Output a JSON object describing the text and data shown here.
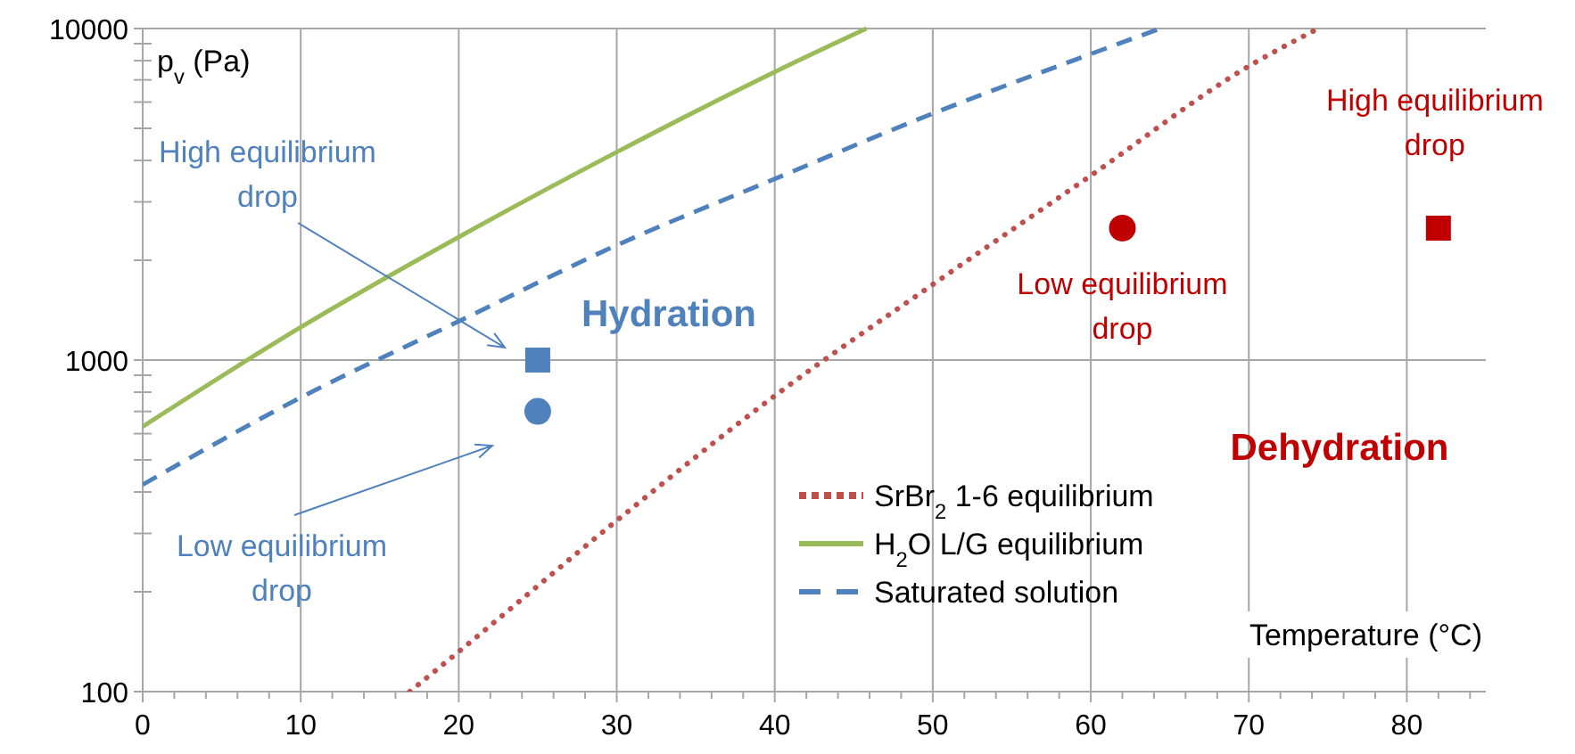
{
  "chart_data": {
    "type": "line",
    "log": "y",
    "xlabel": "Temperature (°C)",
    "ylabel": "p$_{v}$ (Pa)",
    "xlim": [
      0,
      85
    ],
    "xticks": [
      0,
      {
        "value": 2,
        "label": null
      },
      {
        "value": 4,
        "label": null
      },
      {
        "value": 6,
        "label": null
      },
      {
        "value": 8,
        "label": null
      },
      10,
      {
        "value": 12,
        "label": null
      },
      {
        "value": 14,
        "label": null
      },
      {
        "value": 16,
        "label": null
      },
      {
        "value": 18,
        "label": null
      },
      20,
      {
        "value": 22,
        "label": null
      },
      {
        "value": 24,
        "label": null
      },
      {
        "value": 26,
        "label": null
      },
      {
        "value": 28,
        "label": null
      },
      30,
      {
        "value": 32,
        "label": null
      },
      {
        "value": 34,
        "label": null
      },
      {
        "value": 36,
        "label": null
      },
      {
        "value": 38,
        "label": null
      },
      40,
      {
        "value": 42,
        "label": null
      },
      {
        "value": 44,
        "label": null
      },
      {
        "value": 46,
        "label": null
      },
      {
        "value": 48,
        "label": null
      },
      50,
      {
        "value": 52,
        "label": null
      },
      {
        "value": 54,
        "label": null
      },
      {
        "value": 56,
        "label": null
      },
      {
        "value": 58,
        "label": null
      },
      60,
      {
        "value": 62,
        "label": null
      },
      {
        "value": 64,
        "label": null
      },
      {
        "value": 66,
        "label": null
      },
      {
        "value": 68,
        "label": null
      },
      70,
      {
        "value": 72,
        "label": null
      },
      {
        "value": 74,
        "label": null
      },
      {
        "value": 76,
        "label": null
      },
      {
        "value": 78,
        "label": null
      },
      80,
      {
        "value": 82,
        "label": null
      },
      {
        "value": 84,
        "label": null
      }
    ],
    "ylim": [
      100,
      10000
    ],
    "yticks": [
      100,
      {
        "value": 200,
        "label": null
      },
      {
        "value": 300,
        "label": null
      },
      {
        "value": 400,
        "label": null
      },
      {
        "value": 500,
        "label": null
      },
      {
        "value": 600,
        "label": null
      },
      {
        "value": 700,
        "label": null
      },
      {
        "value": 800,
        "label": null
      },
      {
        "value": 900,
        "label": null
      },
      1000,
      {
        "value": 2000,
        "label": null
      },
      {
        "value": 3000,
        "label": null
      },
      {
        "value": 4000,
        "label": null
      },
      {
        "value": 5000,
        "label": null
      },
      {
        "value": 6000,
        "label": null
      },
      {
        "value": 7000,
        "label": null
      },
      {
        "value": 8000,
        "label": null
      },
      {
        "value": 9000,
        "label": null
      },
      10000
    ],
    "grid": true,
    "legend": "bottom right",
    "series": [
      {
        "name": "SrBr$_{2}$ 1-6 equilibrium",
        "color": "#c0504d",
        "line_style": "dotted",
        "x": [
          16.9,
          20,
          30,
          40,
          50,
          60,
          70,
          74.4
        ],
        "values": [
          100,
          132,
          328,
          780,
          1690,
          3600,
          7700,
          10000
        ]
      },
      {
        "name": "H$_{2}$O L/G equilibrium",
        "color": "#9bbb59",
        "line_style": "solid",
        "x": [
          0,
          10,
          20,
          30,
          40,
          45.8
        ],
        "values": [
          630,
          1256,
          2350,
          4240,
          7400,
          10000
        ]
      },
      {
        "name": "Saturated solution",
        "color": "#4f81bd",
        "line_style": "dashed",
        "x": [
          0,
          10,
          20,
          30,
          40,
          50,
          60,
          64.4
        ],
        "values": [
          421,
          771,
          1309,
          2220,
          3520,
          5540,
          8380,
          10000
        ]
      },
      {
        "type": "scatter",
        "color": "#4f81bd",
        "marker": "square",
        "x": [
          25
        ],
        "values": [
          1000
        ]
      },
      {
        "type": "scatter",
        "color": "#4f81bd",
        "marker": "circle",
        "x": [
          25
        ],
        "values": [
          700
        ]
      },
      {
        "type": "scatter",
        "color": "#c00000",
        "marker": "circle",
        "x": [
          62
        ],
        "values": [
          2500
        ]
      },
      {
        "type": "scatter",
        "color": "#c00000",
        "marker": "square",
        "x": [
          82
        ],
        "values": [
          2500
        ]
      }
    ],
    "annotations": [
      "High equilibrium drop",
      "Low equilibrium drop",
      "Hydration",
      {
        "text": "Low equilibrium drop",
        "x": 62,
        "y": 2500
      },
      {
        "text": "High equilibrium drop",
        "x": 82,
        "y": 2500
      },
      "Dehydration"
    ]
  }
}
